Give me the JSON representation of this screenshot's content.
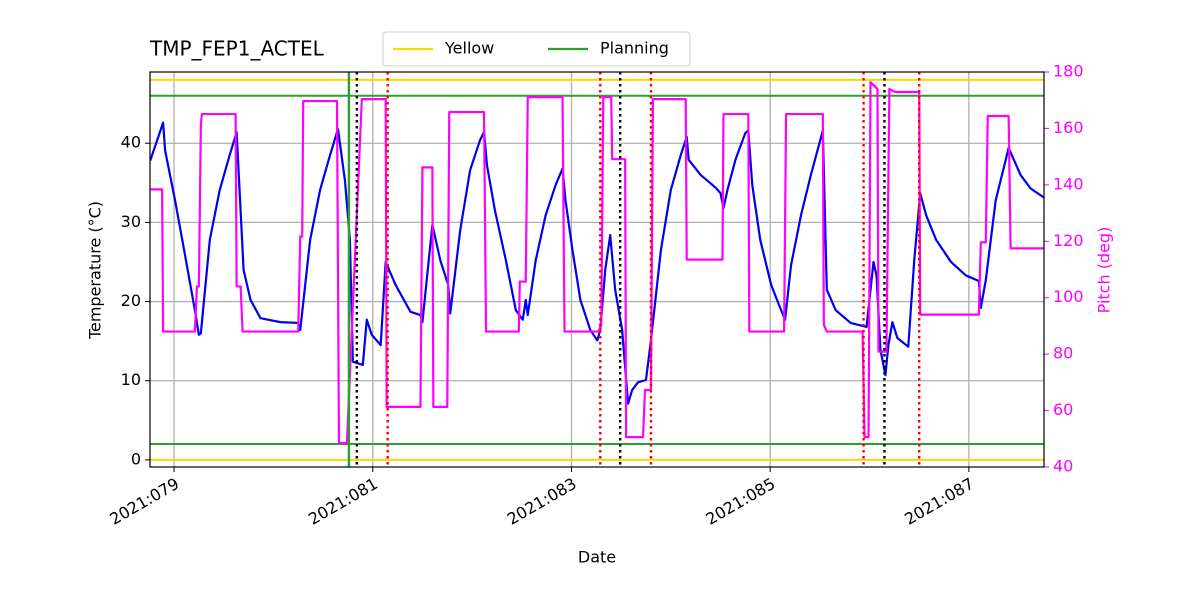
{
  "chart_data": {
    "type": "line",
    "title": "TMP_FEP1_ACTEL",
    "xlabel": "Date",
    "ylabel": "Temperature (°C)",
    "y2label": "Pitch (deg)",
    "y2color": "#ff00ff",
    "xlim": [
      78.758,
      87.756
    ],
    "ylim": [
      -0.9,
      49
    ],
    "y2lim": [
      40,
      180
    ],
    "xticks": [
      {
        "value": 79,
        "label": "2021:079"
      },
      {
        "value": 81,
        "label": "2021:081"
      },
      {
        "value": 83,
        "label": "2021:083"
      },
      {
        "value": 85,
        "label": "2021:085"
      },
      {
        "value": 87,
        "label": "2021:087"
      }
    ],
    "yticks": [
      0,
      10,
      20,
      30,
      40
    ],
    "y2ticks": [
      40,
      60,
      80,
      100,
      120,
      140,
      160,
      180
    ],
    "grid": true,
    "legend": "top",
    "hlines": [
      {
        "name": "Yellow",
        "color": "#ffd700",
        "values": [
          0,
          48
        ]
      },
      {
        "name": "Planning",
        "color": "#2ca02c",
        "values": [
          2,
          46
        ]
      }
    ],
    "vlines": [
      {
        "color": "#2ca02c",
        "style": "solid",
        "values": [
          80.76
        ]
      },
      {
        "color": "#000000",
        "style": "dotted",
        "values": [
          80.84,
          83.49,
          86.15
        ]
      },
      {
        "color": "#ff0000",
        "style": "dotted",
        "values": [
          81.15,
          83.29,
          83.8,
          85.94,
          86.5
        ]
      }
    ],
    "series": [
      {
        "color": "#0000ee",
        "axis": "y",
        "x": [
          78.76,
          78.89,
          78.91,
          79.01,
          79.11,
          79.21,
          79.25,
          79.27,
          79.36,
          79.46,
          79.56,
          79.63,
          79.7,
          79.77,
          79.87,
          80.07,
          80.25,
          80.27,
          80.37,
          80.47,
          80.57,
          80.65,
          80.72,
          80.77,
          80.8,
          80.9,
          80.94,
          80.99,
          81.08,
          81.13,
          81.23,
          81.38,
          81.48,
          81.5,
          81.6,
          81.68,
          81.76,
          81.78,
          81.88,
          81.98,
          82.08,
          82.12,
          82.15,
          82.23,
          82.34,
          82.44,
          82.51,
          82.54,
          82.56,
          82.64,
          82.74,
          82.84,
          82.91,
          82.94,
          83.01,
          83.09,
          83.19,
          83.26,
          83.29,
          83.34,
          83.39,
          83.44,
          83.51,
          83.57,
          83.61,
          83.67,
          83.75,
          83.8,
          83.9,
          84.0,
          84.1,
          84.16,
          84.18,
          84.3,
          84.45,
          84.5,
          84.53,
          84.57,
          84.65,
          84.75,
          84.78,
          84.82,
          84.9,
          85.01,
          85.11,
          85.15,
          85.21,
          85.31,
          85.41,
          85.53,
          85.57,
          85.66,
          85.81,
          85.97,
          86.04,
          86.07,
          86.11,
          86.16,
          86.19,
          86.23,
          86.28,
          86.39,
          86.45,
          86.51,
          86.57,
          86.67,
          86.82,
          86.97,
          87.1,
          87.12,
          87.17,
          87.27,
          87.4,
          87.52,
          87.62,
          87.76
        ],
        "values": [
          37.8,
          42.6,
          39.1,
          32.8,
          25.9,
          18.9,
          15.8,
          16.0,
          27.8,
          34.1,
          38.5,
          41.4,
          24.0,
          20.2,
          17.9,
          17.4,
          17.3,
          16.4,
          27.8,
          34.1,
          38.5,
          41.8,
          35.3,
          27.8,
          12.4,
          12.0,
          17.7,
          15.8,
          14.5,
          25.0,
          22.1,
          18.7,
          18.3,
          17.4,
          29.7,
          25.2,
          22.1,
          18.5,
          29.0,
          36.6,
          40.4,
          41.4,
          37.2,
          31.5,
          25.2,
          18.9,
          17.7,
          20.2,
          18.3,
          25.2,
          30.9,
          34.7,
          36.8,
          32.8,
          26.5,
          20.2,
          16.4,
          15.1,
          16.4,
          24.0,
          28.4,
          21.5,
          16.4,
          7.1,
          8.8,
          9.8,
          10.1,
          15.1,
          26.5,
          34.1,
          38.5,
          40.8,
          37.9,
          36.0,
          34.4,
          33.7,
          31.8,
          34.1,
          37.9,
          41.3,
          41.6,
          34.7,
          27.8,
          22.1,
          18.9,
          17.7,
          24.6,
          30.9,
          36.0,
          41.6,
          21.5,
          18.9,
          17.3,
          16.8,
          25.0,
          23.3,
          13.9,
          10.7,
          14.5,
          17.4,
          15.4,
          14.3,
          25.2,
          33.7,
          30.9,
          27.8,
          25.0,
          23.3,
          22.6,
          19.2,
          22.7,
          32.8,
          39.4,
          36.0,
          34.3,
          33.1
        ]
      },
      {
        "color": "#ff00ff",
        "axis": "y2",
        "x": [
          78.76,
          78.88,
          78.89,
          79.21,
          79.23,
          79.25,
          79.27,
          79.28,
          79.62,
          79.63,
          79.67,
          79.69,
          80.25,
          80.27,
          80.29,
          80.3,
          80.64,
          80.66,
          80.74,
          80.89,
          81.13,
          81.14,
          81.48,
          81.5,
          81.6,
          81.61,
          81.75,
          81.77,
          82.12,
          82.14,
          82.47,
          82.48,
          82.54,
          82.56,
          82.91,
          82.93,
          83.27,
          83.3,
          83.32,
          83.4,
          83.41,
          83.54,
          83.55,
          83.72,
          83.74,
          83.8,
          83.82,
          84.15,
          84.16,
          84.52,
          84.53,
          84.78,
          84.79,
          85.14,
          85.16,
          85.53,
          85.54,
          85.57,
          85.93,
          85.95,
          85.99,
          86.01,
          86.08,
          86.09,
          86.17,
          86.2,
          86.26,
          86.5,
          86.51,
          87.1,
          87.12,
          87.17,
          87.19,
          87.4,
          87.42,
          87.76
        ],
        "values": [
          138.4,
          138.4,
          88.0,
          88.0,
          104.0,
          104.0,
          161.5,
          165.1,
          165.1,
          104.0,
          104.0,
          88.0,
          88.0,
          121.7,
          121.7,
          169.7,
          169.7,
          48.5,
          48.5,
          170.4,
          170.4,
          61.3,
          61.3,
          146.2,
          146.2,
          61.3,
          61.3,
          165.8,
          165.8,
          88.0,
          88.0,
          105.7,
          105.7,
          171.1,
          171.1,
          88.0,
          88.0,
          90.4,
          171.1,
          171.1,
          149.1,
          149.1,
          50.6,
          50.6,
          67.3,
          67.3,
          170.4,
          170.4,
          113.5,
          113.5,
          165.1,
          165.1,
          88.0,
          88.0,
          165.1,
          165.1,
          90.4,
          88.0,
          88.0,
          50.6,
          50.6,
          176.4,
          174.0,
          80.9,
          80.9,
          174.0,
          172.9,
          172.9,
          94.0,
          94.0,
          119.6,
          119.6,
          164.4,
          164.4,
          117.5,
          117.5
        ]
      }
    ]
  }
}
